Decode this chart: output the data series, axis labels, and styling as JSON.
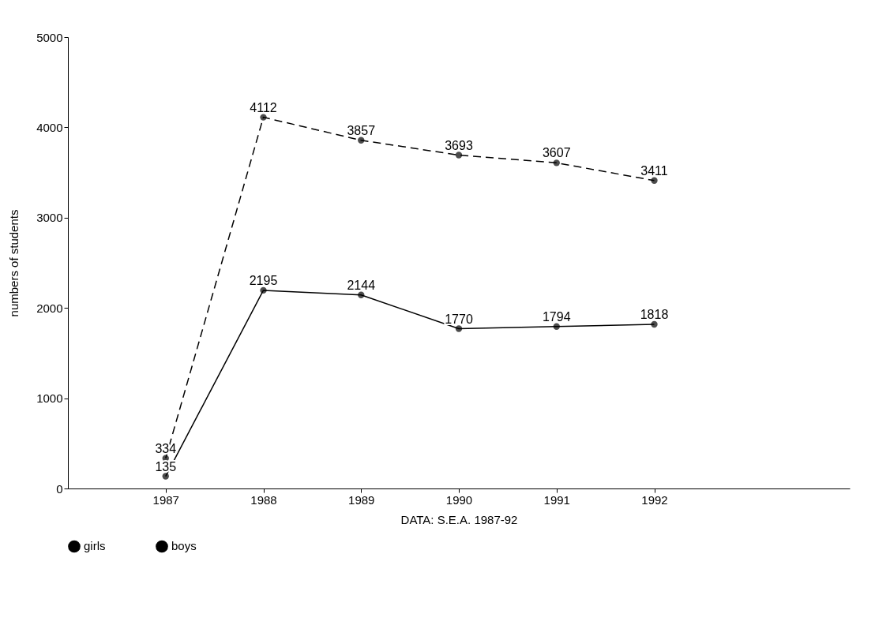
{
  "chart_data": {
    "type": "line",
    "ylabel": "numbers of students",
    "annotations": [
      "DATA: S.E.A. 1987-92"
    ],
    "x": [
      1987,
      1988,
      1989,
      1990,
      1991,
      1992
    ],
    "series": [
      {
        "name": "girls",
        "color": "#000000",
        "line_style": "solid",
        "values": [
          135,
          2195,
          2144,
          1770,
          1794,
          1818
        ]
      },
      {
        "name": "boys",
        "color": "#000000",
        "line_style": "dashed",
        "values": [
          334,
          4112,
          3857,
          3693,
          3607,
          3411
        ]
      }
    ],
    "xlim": [
      1986,
      1994
    ],
    "xticks": [
      1987,
      1988,
      1989,
      1990,
      1991,
      1992
    ],
    "ylim": [
      0,
      5000
    ],
    "yticks": [
      0,
      1000,
      2000,
      3000,
      4000,
      5000
    ],
    "grid": false,
    "legend": "bottom",
    "marker": "circle",
    "data_labels": true
  }
}
